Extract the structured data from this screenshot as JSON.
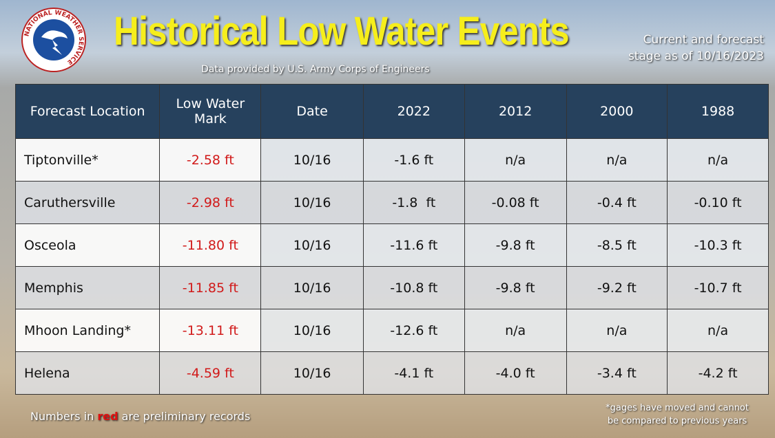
{
  "logo_text": "NATIONAL WEATHER SERVICE",
  "header": {
    "title": "Historical Low Water Events",
    "subtitle": "Data provided by U.S. Army Corps of Engineers",
    "stage_note": [
      "Current and forecast",
      "stage as of 10/16/2023"
    ]
  },
  "table": {
    "columns": [
      "Forecast Location",
      "Low Water Mark",
      "Date",
      "2022",
      "2012",
      "2000",
      "1988"
    ],
    "rows": [
      [
        "Tiptonville*",
        "-2.58 ft",
        "10/16",
        "-1.6 ft",
        "n/a",
        "n/a",
        "n/a"
      ],
      [
        "Caruthersville",
        "-2.98 ft",
        "10/16",
        "-1.8  ft",
        "-0.08 ft",
        "-0.4 ft",
        "-0.10 ft"
      ],
      [
        "Osceola",
        "-11.80 ft",
        "10/16",
        "-11.6 ft",
        "-9.8 ft",
        "-8.5 ft",
        "-10.3 ft"
      ],
      [
        "Memphis",
        "-11.85 ft",
        "10/16",
        "-10.8 ft",
        "-9.8 ft",
        "-9.2 ft",
        "-10.7 ft"
      ],
      [
        "Mhoon Landing*",
        "-13.11 ft",
        "10/16",
        "-12.6 ft",
        "n/a",
        "n/a",
        "n/a"
      ],
      [
        "Helena",
        "-4.59 ft",
        "10/16",
        "-4.1 ft",
        "-4.0 ft",
        "-3.4 ft",
        "-4.2 ft"
      ]
    ]
  },
  "footer": {
    "note": [
      "Numbers in ",
      "red",
      " are preliminary records"
    ],
    "footnote": [
      "*gages have moved and cannot",
      "be compared to previous years"
    ]
  }
}
